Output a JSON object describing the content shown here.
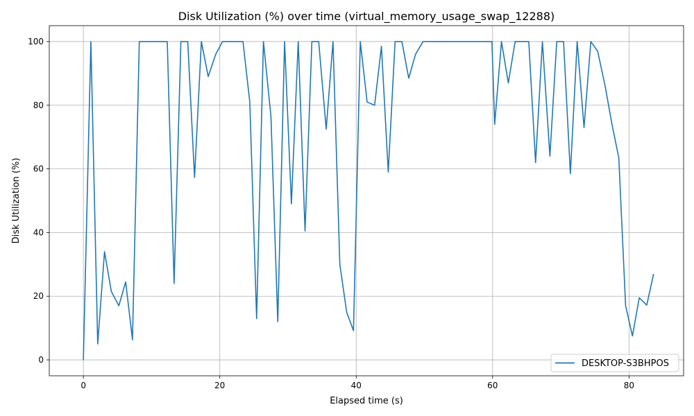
{
  "chart_data": {
    "type": "line",
    "title": "Disk Utilization (%) over time (virtual_memory_usage_swap_12288)",
    "xlabel": "Elapsed time (s)",
    "ylabel": "Disk Utilization (%)",
    "xlim": [
      -5,
      88
    ],
    "ylim": [
      -5,
      105
    ],
    "xticks": [
      0,
      20,
      40,
      60,
      80
    ],
    "yticks": [
      0,
      20,
      40,
      60,
      80,
      100
    ],
    "grid": true,
    "legend_position": "bottom-right",
    "series": [
      {
        "name": "DESKTOP-S3BHPOS",
        "color": "#1f77b4",
        "x": [
          0,
          1.1,
          2.1,
          3.1,
          4.1,
          5.2,
          6.2,
          7.2,
          8.2,
          9.2,
          10.2,
          11.2,
          12.3,
          13.3,
          14.3,
          15.3,
          16.3,
          17.3,
          18.3,
          19.4,
          20.4,
          21.4,
          22.4,
          23.4,
          24.4,
          25.4,
          26.4,
          27.5,
          28.5,
          29.5,
          30.5,
          31.5,
          32.5,
          33.5,
          34.5,
          35.6,
          36.6,
          37.6,
          38.6,
          39.6,
          40.6,
          41.6,
          42.7,
          43.7,
          44.7,
          45.7,
          46.7,
          47.7,
          48.7,
          49.8,
          50.8,
          51.8,
          52.8,
          53.8,
          54.8,
          55.8,
          56.8,
          57.9,
          58.9,
          59.9,
          60.3,
          61.3,
          62.3,
          63.3,
          64.3,
          65.3,
          66.3,
          67.3,
          68.4,
          69.4,
          70.4,
          71.4,
          72.4,
          73.4,
          74.4,
          75.4,
          76.5,
          77.5,
          78.5,
          79.5,
          80.5,
          81.5,
          82.6,
          83.6
        ],
        "y": [
          0,
          100,
          5,
          34,
          21.5,
          17,
          24.5,
          6.3,
          100,
          100,
          100,
          100,
          100,
          24,
          100,
          100,
          57.3,
          100,
          89,
          96,
          100,
          100,
          100,
          100,
          81,
          13,
          100,
          76.5,
          12,
          100,
          49,
          100,
          40.5,
          100,
          100,
          72.5,
          100,
          30,
          15,
          9.2,
          100,
          81,
          80,
          98.5,
          59,
          100,
          100,
          88.5,
          96,
          100,
          100,
          100,
          100,
          100,
          100,
          100,
          100,
          100,
          100,
          100,
          74,
          100,
          87,
          100,
          100,
          100,
          62,
          100,
          64,
          100,
          100,
          58.5,
          100,
          73,
          100,
          97,
          86,
          74,
          63.5,
          17,
          7.5,
          19.5,
          17.2,
          27
        ]
      }
    ]
  }
}
